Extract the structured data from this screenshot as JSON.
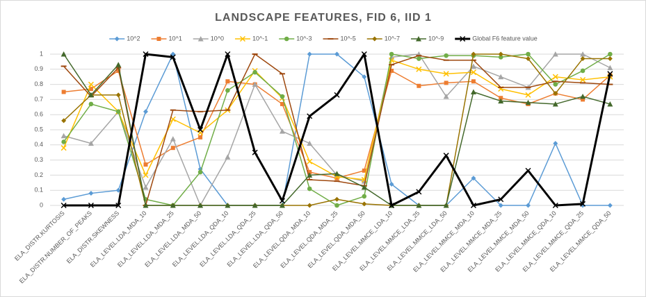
{
  "chart_data": {
    "type": "line",
    "title": "LANDSCAPE FEATURES, FID 6, IID 1",
    "categories": [
      "ELA_DISTR.KURTOSIS",
      "ELA_DISTR.NUMBER_OF_PEAKS",
      "ELA_DISTR.SKEWNESS",
      "ELA_LEVEL.LDA_MDA_10",
      "ELA_LEVEL.LDA_MDA_25",
      "ELA_LEVEL.LDA_MDA_50",
      "ELA_LEVEL.LDA_QDA_10",
      "ELA_LEVEL.LDA_QDA_25",
      "ELA_LEVEL.LDA_QDA_50",
      "ELA_LEVEL.QDA_MDA_10",
      "ELA_LEVEL.QDA_MDA_25",
      "ELA_LEVEL.QDA_MDA_50",
      "ELA_LEVEL.MMCE_LDA_10",
      "ELA_LEVEL.MMCE_LDA_25",
      "ELA_LEVEL.MMCE_LDA_50",
      "ELA_LEVEL.MMCE_MDA_10",
      "ELA_LEVEL.MMCE_MDA_25",
      "ELA_LEVEL.MMCE_MDA_50",
      "ELA_LEVEL.MMCE_QDA_10",
      "ELA_LEVEL.MMCE_QDA_25",
      "ELA_LEVEL.MMCE_QDA_50"
    ],
    "series": [
      {
        "name": "10^2",
        "color": "#5b9bd5",
        "marker": "diamond",
        "values": [
          0.04,
          0.08,
          0.1,
          0.62,
          1,
          0.24,
          0,
          0,
          0,
          1,
          1,
          0.85,
          0.14,
          0,
          0,
          0.18,
          0,
          0,
          0.41,
          0,
          0
        ]
      },
      {
        "name": "10^1",
        "color": "#ed7d31",
        "marker": "square",
        "values": [
          0.75,
          0.77,
          0.89,
          0.27,
          0.38,
          0.45,
          0.82,
          0.8,
          0.67,
          0.22,
          0.18,
          0.23,
          0.89,
          0.79,
          0.81,
          0.82,
          0.71,
          0.67,
          0.74,
          0.7,
          0.86
        ]
      },
      {
        "name": "10^0",
        "color": "#a5a5a5",
        "marker": "triangle",
        "values": [
          0.46,
          0.41,
          0.62,
          0.12,
          0.44,
          0,
          0.32,
          0.8,
          0.49,
          0.41,
          0.2,
          0.16,
          0.98,
          1,
          0.72,
          0.92,
          0.85,
          0.78,
          1,
          1,
          0.91
        ]
      },
      {
        "name": "10^-1",
        "color": "#ffc000",
        "marker": "x",
        "values": [
          0.38,
          0.8,
          0.62,
          0.2,
          0.57,
          0.48,
          0.63,
          0.89,
          0.71,
          0.29,
          0.19,
          0.17,
          0.96,
          0.9,
          0.87,
          0.88,
          0.77,
          0.73,
          0.85,
          0.83,
          0.85
        ]
      },
      {
        "name": "10^-3",
        "color": "#70ad47",
        "marker": "circle",
        "values": [
          0.42,
          0.67,
          0.62,
          0.04,
          0,
          0.22,
          0.76,
          0.88,
          0.72,
          0.11,
          0,
          0.06,
          1,
          0.97,
          0.99,
          0.99,
          0.98,
          1,
          0.8,
          0.89,
          1
        ]
      },
      {
        "name": "10^-5",
        "color": "#9e480e",
        "marker": "dash",
        "values": [
          0.92,
          0.72,
          0.91,
          0,
          0.63,
          0.62,
          0.63,
          1,
          0.87,
          0.17,
          0.16,
          0.13,
          0.93,
          0.99,
          0.96,
          0.96,
          0.78,
          0.78,
          0.82,
          0.81,
          0.8
        ]
      },
      {
        "name": "10^-7",
        "color": "#997300",
        "marker": "diamond",
        "values": [
          0.56,
          0.73,
          0.73,
          0,
          0,
          0,
          0,
          0,
          0,
          0,
          0.04,
          0.01,
          0,
          0,
          0,
          1,
          1,
          0.97,
          0.74,
          0.97,
          0.97
        ]
      },
      {
        "name": "10^-9",
        "color": "#43682b",
        "marker": "triangle",
        "values": [
          1,
          0.73,
          0.93,
          0,
          0,
          0,
          0,
          0,
          0,
          0.2,
          0.21,
          0.12,
          0,
          0,
          0,
          0.75,
          0.69,
          0.68,
          0.67,
          0.72,
          0.67
        ]
      },
      {
        "name": "Global F6 feature value",
        "color": "#000000",
        "marker": "x",
        "width": 3,
        "values": [
          0,
          0,
          0,
          1,
          0.98,
          0.5,
          1,
          0.35,
          0.03,
          0.59,
          0.73,
          1,
          0,
          0.09,
          0.33,
          0,
          0.04,
          0.23,
          0,
          0.01,
          0.87
        ]
      }
    ],
    "ylim": [
      0,
      1
    ],
    "yticks": [
      0,
      0.1,
      0.2,
      0.3,
      0.4,
      0.5,
      0.6,
      0.7,
      0.8,
      0.9,
      1
    ],
    "grid": true,
    "legend": "top"
  }
}
